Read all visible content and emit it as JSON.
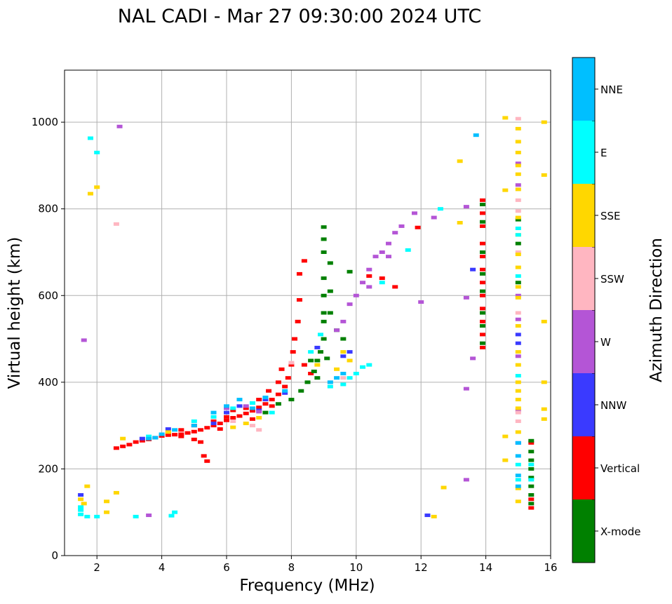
{
  "chart_data": {
    "type": "scatter",
    "title": "NAL CADI - Mar 27 09:30:00 2024 UTC",
    "xlabel": "Frequency (MHz)",
    "ylabel": "Virtual height (km)",
    "xlim": [
      1,
      16
    ],
    "ylim": [
      0,
      1120
    ],
    "xticks": [
      2,
      4,
      6,
      8,
      10,
      12,
      14,
      16
    ],
    "yticks": [
      0,
      200,
      400,
      600,
      800,
      1000
    ],
    "grid": true,
    "colorbar": {
      "label": "Azimuth Direction",
      "categories": [
        {
          "name": "X-mode",
          "color": "#008000"
        },
        {
          "name": "Vertical",
          "color": "#ff0000"
        },
        {
          "name": "NNW",
          "color": "#3a3aff"
        },
        {
          "name": "W",
          "color": "#b455d6"
        },
        {
          "name": "SSW",
          "color": "#ffb6c1"
        },
        {
          "name": "SSE",
          "color": "#ffd700"
        },
        {
          "name": "E",
          "color": "#00ffff"
        },
        {
          "name": "NNE",
          "color": "#00bfff"
        }
      ]
    },
    "series": [
      {
        "name": "Vertical",
        "color": "#ff0000",
        "points": [
          [
            2.6,
            248
          ],
          [
            2.8,
            252
          ],
          [
            3.0,
            256
          ],
          [
            3.2,
            262
          ],
          [
            3.4,
            265
          ],
          [
            3.6,
            268
          ],
          [
            3.8,
            272
          ],
          [
            4.0,
            276
          ],
          [
            4.2,
            278
          ],
          [
            4.4,
            279
          ],
          [
            4.6,
            280
          ],
          [
            4.8,
            283
          ],
          [
            5.0,
            286
          ],
          [
            5.2,
            290
          ],
          [
            5.4,
            295
          ],
          [
            5.6,
            300
          ],
          [
            5.8,
            305
          ],
          [
            6.0,
            312
          ],
          [
            6.2,
            318
          ],
          [
            6.4,
            322
          ],
          [
            6.6,
            328
          ],
          [
            6.8,
            334
          ],
          [
            7.0,
            342
          ],
          [
            7.2,
            350
          ],
          [
            7.4,
            360
          ],
          [
            7.6,
            372
          ],
          [
            7.8,
            390
          ],
          [
            7.9,
            410
          ],
          [
            8.0,
            440
          ],
          [
            8.05,
            470
          ],
          [
            8.1,
            500
          ],
          [
            8.2,
            540
          ],
          [
            8.25,
            590
          ],
          [
            8.25,
            650
          ],
          [
            8.4,
            680
          ],
          [
            4.2,
            282
          ],
          [
            4.6,
            275
          ],
          [
            5.0,
            268
          ],
          [
            5.2,
            262
          ],
          [
            5.3,
            230
          ],
          [
            5.4,
            218
          ],
          [
            5.6,
            310
          ],
          [
            6.2,
            335
          ],
          [
            6.6,
            340
          ],
          [
            7.0,
            360
          ],
          [
            7.3,
            380
          ],
          [
            7.6,
            400
          ],
          [
            7.7,
            430
          ],
          [
            8.4,
            440
          ],
          [
            8.6,
            420
          ],
          [
            13.9,
            820
          ],
          [
            13.9,
            790
          ],
          [
            13.9,
            760
          ],
          [
            13.9,
            720
          ],
          [
            13.9,
            690
          ],
          [
            13.9,
            660
          ],
          [
            13.9,
            630
          ],
          [
            13.9,
            600
          ],
          [
            13.9,
            570
          ],
          [
            13.9,
            540
          ],
          [
            13.9,
            510
          ],
          [
            13.9,
            480
          ],
          [
            15.4,
            110
          ],
          [
            15.4,
            130
          ],
          [
            15.4,
            260
          ],
          [
            11.9,
            757
          ],
          [
            11.2,
            620
          ],
          [
            10.8,
            640
          ],
          [
            10.4,
            645
          ],
          [
            6.0,
            320
          ],
          [
            6.8,
            315
          ],
          [
            7.4,
            345
          ],
          [
            5.8,
            292
          ],
          [
            5.0,
            300
          ],
          [
            4.6,
            290
          ]
        ]
      },
      {
        "name": "X-mode",
        "color": "#008000",
        "points": [
          [
            7.2,
            330
          ],
          [
            7.6,
            350
          ],
          [
            8.0,
            360
          ],
          [
            8.3,
            380
          ],
          [
            8.5,
            400
          ],
          [
            8.7,
            425
          ],
          [
            8.8,
            450
          ],
          [
            8.9,
            470
          ],
          [
            9.0,
            500
          ],
          [
            9.0,
            540
          ],
          [
            9.0,
            560
          ],
          [
            9.0,
            600
          ],
          [
            9.0,
            640
          ],
          [
            9.0,
            700
          ],
          [
            9.0,
            730
          ],
          [
            9.0,
            758
          ],
          [
            9.2,
            675
          ],
          [
            9.2,
            610
          ],
          [
            9.2,
            560
          ],
          [
            9.4,
            520
          ],
          [
            9.6,
            500
          ],
          [
            9.8,
            655
          ],
          [
            9.1,
            455
          ],
          [
            8.8,
            410
          ],
          [
            8.6,
            450
          ],
          [
            13.9,
            810
          ],
          [
            13.9,
            770
          ],
          [
            13.9,
            700
          ],
          [
            13.9,
            650
          ],
          [
            13.9,
            610
          ],
          [
            13.9,
            560
          ],
          [
            13.9,
            530
          ],
          [
            13.9,
            490
          ],
          [
            15.4,
            120
          ],
          [
            15.4,
            140
          ],
          [
            15.4,
            160
          ],
          [
            15.4,
            180
          ],
          [
            15.4,
            200
          ],
          [
            15.4,
            220
          ],
          [
            15.4,
            240
          ],
          [
            15.4,
            265
          ],
          [
            15.0,
            775
          ],
          [
            15.0,
            720
          ],
          [
            15.0,
            630
          ]
        ]
      },
      {
        "name": "NNW",
        "color": "#3a3aff",
        "points": [
          [
            1.5,
            140
          ],
          [
            3.4,
            270
          ],
          [
            4.2,
            292
          ],
          [
            5.6,
            305
          ],
          [
            6.0,
            330
          ],
          [
            6.4,
            345
          ],
          [
            7.0,
            335
          ],
          [
            7.8,
            375
          ],
          [
            8.8,
            480
          ],
          [
            9.6,
            460
          ],
          [
            9.8,
            470
          ],
          [
            13.6,
            660
          ],
          [
            15.0,
            490
          ],
          [
            15.0,
            510
          ],
          [
            15.0,
            260
          ],
          [
            12.2,
            93
          ],
          [
            7.2,
            360
          ]
        ]
      },
      {
        "name": "W",
        "color": "#b455d6",
        "points": [
          [
            1.6,
            497
          ],
          [
            2.7,
            990
          ],
          [
            3.6,
            93
          ],
          [
            6.0,
            340
          ],
          [
            6.6,
            345
          ],
          [
            7.0,
            332
          ],
          [
            9.4,
            520
          ],
          [
            9.6,
            540
          ],
          [
            9.8,
            580
          ],
          [
            10.0,
            600
          ],
          [
            10.2,
            630
          ],
          [
            10.4,
            660
          ],
          [
            10.6,
            690
          ],
          [
            10.8,
            700
          ],
          [
            11.0,
            720
          ],
          [
            11.2,
            745
          ],
          [
            11.4,
            760
          ],
          [
            11.8,
            790
          ],
          [
            12.4,
            780
          ],
          [
            13.4,
            805
          ],
          [
            13.4,
            595
          ],
          [
            13.6,
            455
          ],
          [
            13.4,
            385
          ],
          [
            13.4,
            175
          ],
          [
            12.0,
            585
          ],
          [
            15.0,
            545
          ],
          [
            15.0,
            600
          ],
          [
            15.0,
            460
          ],
          [
            15.0,
            335
          ],
          [
            15.0,
            855
          ],
          [
            15.0,
            905
          ],
          [
            11.0,
            690
          ],
          [
            10.4,
            620
          ]
        ]
      },
      {
        "name": "SSW",
        "color": "#ffb6c1",
        "points": [
          [
            2.6,
            765
          ],
          [
            6.2,
            310
          ],
          [
            6.8,
            300
          ],
          [
            7.0,
            290
          ],
          [
            9.2,
            400
          ],
          [
            9.6,
            410
          ],
          [
            15.0,
            310
          ],
          [
            15.0,
            795
          ],
          [
            15.0,
            820
          ],
          [
            15.0,
            1008
          ],
          [
            15.0,
            700
          ],
          [
            15.0,
            560
          ],
          [
            15.0,
            330
          ],
          [
            8.0,
            445
          ]
        ]
      },
      {
        "name": "SSE",
        "color": "#ffd700",
        "points": [
          [
            1.5,
            130
          ],
          [
            1.6,
            120
          ],
          [
            1.7,
            160
          ],
          [
            1.8,
            835
          ],
          [
            2.0,
            850
          ],
          [
            2.3,
            125
          ],
          [
            2.3,
            100
          ],
          [
            2.6,
            145
          ],
          [
            2.8,
            270
          ],
          [
            4.2,
            285
          ],
          [
            6.2,
            296
          ],
          [
            6.6,
            305
          ],
          [
            7.0,
            318
          ],
          [
            8.8,
            440
          ],
          [
            9.4,
            430
          ],
          [
            9.6,
            470
          ],
          [
            9.8,
            450
          ],
          [
            12.4,
            90
          ],
          [
            12.7,
            157
          ],
          [
            13.2,
            910
          ],
          [
            13.2,
            768
          ],
          [
            14.6,
            1010
          ],
          [
            14.6,
            843
          ],
          [
            14.6,
            275
          ],
          [
            14.6,
            220
          ],
          [
            15.0,
            985
          ],
          [
            15.0,
            955
          ],
          [
            15.0,
            930
          ],
          [
            15.0,
            900
          ],
          [
            15.0,
            880
          ],
          [
            15.0,
            845
          ],
          [
            15.0,
            780
          ],
          [
            15.0,
            740
          ],
          [
            15.0,
            695
          ],
          [
            15.0,
            665
          ],
          [
            15.0,
            620
          ],
          [
            15.0,
            595
          ],
          [
            15.0,
            530
          ],
          [
            15.0,
            470
          ],
          [
            15.0,
            440
          ],
          [
            15.0,
            400
          ],
          [
            15.0,
            380
          ],
          [
            15.0,
            360
          ],
          [
            15.0,
            340
          ],
          [
            15.0,
            285
          ],
          [
            15.0,
            155
          ],
          [
            15.0,
            125
          ],
          [
            15.8,
            1000
          ],
          [
            15.8,
            878
          ],
          [
            15.8,
            540
          ],
          [
            15.8,
            400
          ],
          [
            15.8,
            338
          ],
          [
            15.8,
            315
          ]
        ]
      },
      {
        "name": "E",
        "color": "#00ffff",
        "points": [
          [
            1.5,
            95
          ],
          [
            1.5,
            105
          ],
          [
            1.5,
            112
          ],
          [
            1.7,
            90
          ],
          [
            1.8,
            963
          ],
          [
            2.0,
            930
          ],
          [
            2.0,
            90
          ],
          [
            3.2,
            90
          ],
          [
            4.3,
            92
          ],
          [
            4.4,
            100
          ],
          [
            3.6,
            275
          ],
          [
            5.0,
            310
          ],
          [
            5.6,
            320
          ],
          [
            6.2,
            340
          ],
          [
            6.8,
            352
          ],
          [
            7.4,
            330
          ],
          [
            8.6,
            470
          ],
          [
            8.9,
            510
          ],
          [
            9.2,
            390
          ],
          [
            9.6,
            395
          ],
          [
            9.8,
            410
          ],
          [
            10.0,
            420
          ],
          [
            10.2,
            435
          ],
          [
            10.4,
            440
          ],
          [
            10.8,
            630
          ],
          [
            11.6,
            705
          ],
          [
            12.6,
            800
          ],
          [
            15.0,
            740
          ],
          [
            15.0,
            755
          ],
          [
            15.0,
            645
          ],
          [
            15.0,
            415
          ],
          [
            15.0,
            175
          ],
          [
            15.0,
            210
          ],
          [
            15.4,
            210
          ],
          [
            15.4,
            175
          ]
        ]
      },
      {
        "name": "NNE",
        "color": "#00bfff",
        "points": [
          [
            3.6,
            270
          ],
          [
            3.8,
            272
          ],
          [
            4.0,
            280
          ],
          [
            4.4,
            290
          ],
          [
            5.0,
            300
          ],
          [
            5.6,
            330
          ],
          [
            6.0,
            345
          ],
          [
            6.4,
            360
          ],
          [
            6.8,
            340
          ],
          [
            7.2,
            365
          ],
          [
            7.8,
            380
          ],
          [
            9.2,
            400
          ],
          [
            9.4,
            410
          ],
          [
            9.6,
            420
          ],
          [
            13.7,
            970
          ],
          [
            15.0,
            260
          ],
          [
            15.0,
            230
          ],
          [
            15.0,
            185
          ],
          [
            15.0,
            160
          ]
        ]
      }
    ]
  }
}
